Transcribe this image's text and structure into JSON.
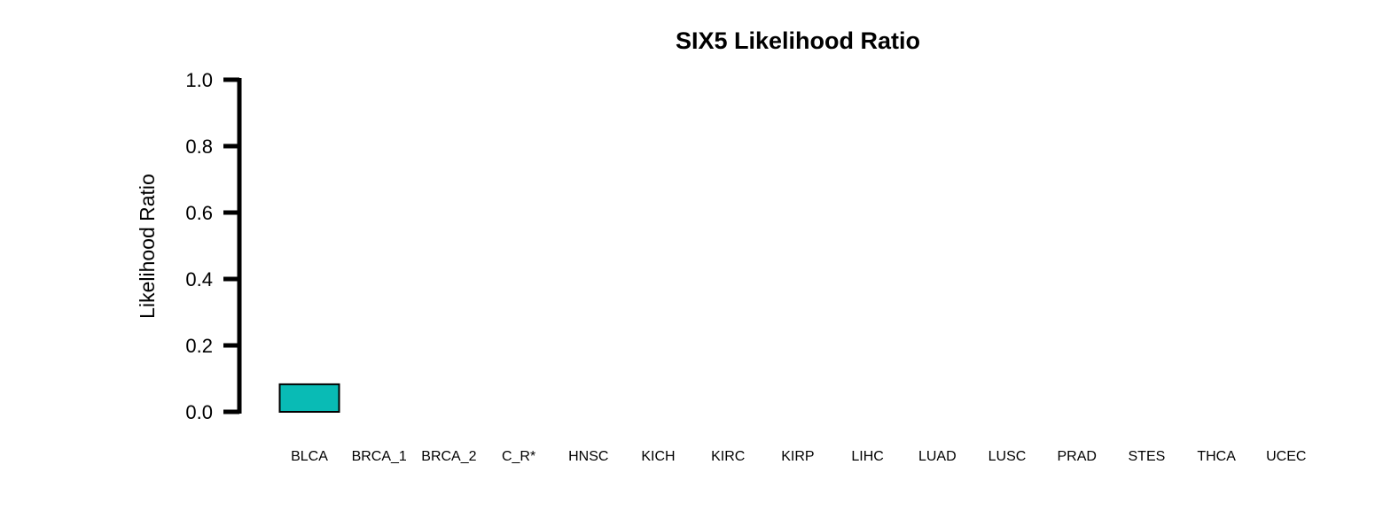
{
  "chart_data": {
    "type": "bar",
    "title": "SIX5 Likelihood Ratio",
    "xlabel": "",
    "ylabel": "Likelihood Ratio",
    "categories": [
      "BLCA",
      "BRCA_1",
      "BRCA_2",
      "C_R*",
      "HNSC",
      "KICH",
      "KIRC",
      "KIRP",
      "LIHC",
      "LUAD",
      "LUSC",
      "PRAD",
      "STES",
      "THCA",
      "UCEC"
    ],
    "values": [
      0.083,
      0,
      0,
      0,
      0,
      0,
      0,
      0,
      0,
      0,
      0,
      0,
      0,
      0,
      0
    ],
    "ylim": [
      0,
      1
    ],
    "yticks": [
      "0.0",
      "0.2",
      "0.4",
      "0.6",
      "0.8",
      "1.0"
    ],
    "bar_color": "#09BBB5",
    "grid": false,
    "legend": "none"
  }
}
